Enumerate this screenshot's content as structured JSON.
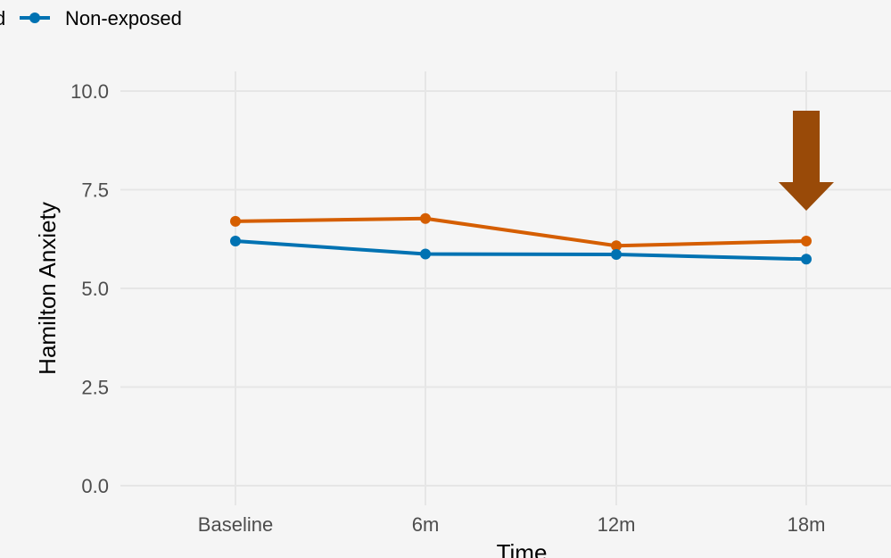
{
  "chart_data": {
    "type": "line",
    "xlabel": "Time",
    "ylabel": "Hamilton Anxiety",
    "categories": [
      "Baseline",
      "6m",
      "12m",
      "18m"
    ],
    "ylim": [
      0,
      10
    ],
    "yticks": [
      "0.0",
      "2.5",
      "5.0",
      "7.5",
      "10.0"
    ],
    "grid": true,
    "legend_position": "top-left",
    "series": [
      {
        "name": "Exposed",
        "legend_visible_text": "d",
        "color": "#d55e00",
        "values": [
          6.7,
          6.77,
          6.08,
          6.2
        ]
      },
      {
        "name": "Non-exposed",
        "legend_visible_text": "Non-exposed",
        "color": "#0072b2",
        "values": [
          6.2,
          5.87,
          5.86,
          5.74
        ]
      }
    ],
    "annotation": {
      "type": "down-arrow",
      "category": "18m",
      "color": "#994a08"
    }
  }
}
